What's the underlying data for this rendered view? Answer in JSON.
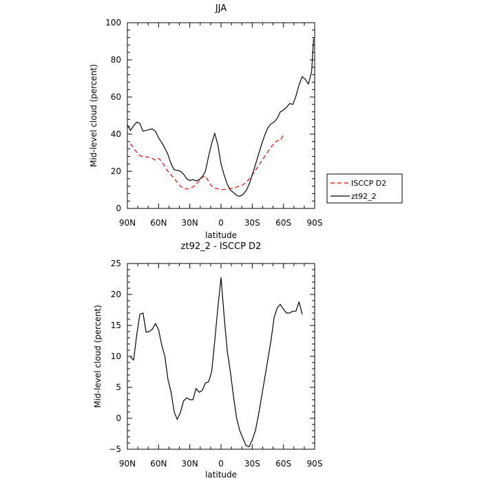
{
  "chart_data": [
    {
      "type": "line",
      "title": "JJA",
      "xlabel": "latitude",
      "ylabel": "Mid-level cloud (percent)",
      "xlim": [
        90,
        -90
      ],
      "ylim": [
        0,
        100
      ],
      "x_ticks": [
        90,
        60,
        30,
        0,
        -30,
        -60,
        -90
      ],
      "x_tick_labels": [
        "90N",
        "60N",
        "30N",
        "0",
        "30S",
        "60S",
        "90S"
      ],
      "y_ticks": [
        0,
        20,
        40,
        60,
        80,
        100
      ],
      "y_tick_labels": [
        "0",
        "20",
        "40",
        "60",
        "80",
        "100"
      ],
      "grid": false,
      "legend": {
        "position": "right",
        "entries": [
          "ISCCP D2",
          "zt92_2"
        ]
      },
      "series": [
        {
          "name": "ISCCP D2",
          "color": "#ff0000",
          "dash": "dashed",
          "points": [
            [
              87,
              34.8
            ],
            [
              84,
              32.5
            ],
            [
              81,
              30.2
            ],
            [
              78,
              28.5
            ],
            [
              75,
              27.7
            ],
            [
              72,
              27.8
            ],
            [
              69,
              27.4
            ],
            [
              66,
              26.8
            ],
            [
              63,
              26.0
            ],
            [
              60,
              26.9
            ],
            [
              57,
              25.5
            ],
            [
              54,
              22.5
            ],
            [
              51,
              20.0
            ],
            [
              48,
              18.0
            ],
            [
              45,
              16.0
            ],
            [
              42,
              14.0
            ],
            [
              39,
              12.0
            ],
            [
              36,
              10.8
            ],
            [
              33,
              10.4
            ],
            [
              30,
              10.6
            ],
            [
              27,
              11.5
            ],
            [
              24,
              13.0
            ],
            [
              21,
              15.0
            ],
            [
              18,
              16.8
            ],
            [
              15,
              17.5
            ],
            [
              12,
              14.5
            ],
            [
              9,
              12.0
            ],
            [
              6,
              11.0
            ],
            [
              3,
              10.5
            ],
            [
              0,
              10.2
            ],
            [
              -3,
              10.2
            ],
            [
              -6,
              10.5
            ],
            [
              -9,
              10.8
            ],
            [
              -12,
              11.1
            ],
            [
              -15,
              11.5
            ],
            [
              -18,
              12.0
            ],
            [
              -21,
              12.7
            ],
            [
              -24,
              14.0
            ],
            [
              -27,
              15.8
            ],
            [
              -30,
              18.0
            ],
            [
              -33,
              20.5
            ],
            [
              -36,
              23.0
            ],
            [
              -39,
              25.5
            ],
            [
              -42,
              28.0
            ],
            [
              -45,
              30.5
            ],
            [
              -48,
              33.0
            ],
            [
              -51,
              35.0
            ],
            [
              -54,
              36.5
            ],
            [
              -57,
              36.5
            ],
            [
              -60,
              39.8
            ]
          ]
        },
        {
          "name": "zt92_2",
          "color": "#000000",
          "dash": "solid",
          "points": [
            [
              90,
              45.0
            ],
            [
              87,
              42.0
            ],
            [
              84,
              44.5
            ],
            [
              81,
              46.5
            ],
            [
              78,
              45.7
            ],
            [
              75,
              41.6
            ],
            [
              72,
              42.0
            ],
            [
              69,
              42.5
            ],
            [
              66,
              42.8
            ],
            [
              63,
              41.5
            ],
            [
              60,
              38.0
            ],
            [
              57,
              35.5
            ],
            [
              54,
              32.5
            ],
            [
              51,
              29.0
            ],
            [
              48,
              24.0
            ],
            [
              45,
              20.8
            ],
            [
              42,
              20.5
            ],
            [
              39,
              20.0
            ],
            [
              36,
              18.5
            ],
            [
              33,
              16.0
            ],
            [
              30,
              15.0
            ],
            [
              27,
              15.5
            ],
            [
              24,
              14.8
            ],
            [
              21,
              15.5
            ],
            [
              18,
              17.0
            ],
            [
              15,
              20.0
            ],
            [
              12,
              28.0
            ],
            [
              9,
              35.0
            ],
            [
              6,
              40.5
            ],
            [
              3,
              34.0
            ],
            [
              0,
              24.0
            ],
            [
              -3,
              18.0
            ],
            [
              -6,
              13.0
            ],
            [
              -9,
              10.0
            ],
            [
              -12,
              8.5
            ],
            [
              -15,
              7.0
            ],
            [
              -18,
              6.5
            ],
            [
              -21,
              7.5
            ],
            [
              -24,
              9.5
            ],
            [
              -27,
              13.0
            ],
            [
              -30,
              18.0
            ],
            [
              -33,
              23.5
            ],
            [
              -36,
              29.0
            ],
            [
              -39,
              34.5
            ],
            [
              -42,
              39.5
            ],
            [
              -45,
              43.5
            ],
            [
              -48,
              45.5
            ],
            [
              -51,
              46.5
            ],
            [
              -54,
              48.5
            ],
            [
              -57,
              52.0
            ],
            [
              -60,
              53.0
            ],
            [
              -63,
              54.5
            ],
            [
              -66,
              56.5
            ],
            [
              -69,
              56.0
            ],
            [
              -72,
              60.5
            ],
            [
              -75,
              66.5
            ],
            [
              -78,
              71.0
            ],
            [
              -81,
              69.5
            ],
            [
              -84,
              67.0
            ],
            [
              -87,
              73.5
            ],
            [
              -89,
              91.5
            ]
          ]
        }
      ]
    },
    {
      "type": "line",
      "title": "zt92_2 - ISCCP D2",
      "xlabel": "latitude",
      "ylabel": "Mid-level cloud (percent)",
      "xlim": [
        90,
        -90
      ],
      "ylim": [
        -5,
        25
      ],
      "x_ticks": [
        90,
        60,
        30,
        0,
        -30,
        -60,
        -90
      ],
      "x_tick_labels": [
        "90N",
        "60N",
        "30N",
        "0",
        "30S",
        "60S",
        "90S"
      ],
      "y_ticks": [
        -5,
        0,
        5,
        10,
        15,
        20,
        25
      ],
      "y_tick_labels": [
        "−5",
        "0",
        "5",
        "10",
        "15",
        "20",
        "25"
      ],
      "grid": false,
      "series": [
        {
          "color": "#000000",
          "dash": "solid",
          "points": [
            [
              87,
              9.9
            ],
            [
              84,
              9.4
            ],
            [
              81,
              13.5
            ],
            [
              78,
              16.8
            ],
            [
              75,
              17.0
            ],
            [
              72,
              13.9
            ],
            [
              69,
              14.0
            ],
            [
              66,
              14.4
            ],
            [
              63,
              15.3
            ],
            [
              60,
              14.3
            ],
            [
              57,
              11.8
            ],
            [
              54,
              10.0
            ],
            [
              51,
              6.3
            ],
            [
              48,
              4.2
            ],
            [
              45,
              1.0
            ],
            [
              42,
              -0.2
            ],
            [
              39,
              1.0
            ],
            [
              36,
              2.8
            ],
            [
              33,
              3.3
            ],
            [
              30,
              3.0
            ],
            [
              27,
              3.0
            ],
            [
              24,
              4.8
            ],
            [
              21,
              4.2
            ],
            [
              18,
              4.5
            ],
            [
              15,
              5.7
            ],
            [
              12,
              5.9
            ],
            [
              9,
              7.5
            ],
            [
              6,
              12.5
            ],
            [
              3,
              18.0
            ],
            [
              0,
              22.7
            ],
            [
              -3,
              16.5
            ],
            [
              -6,
              10.8
            ],
            [
              -9,
              7.5
            ],
            [
              -12,
              3.5
            ],
            [
              -15,
              0.0
            ],
            [
              -18,
              -2.0
            ],
            [
              -21,
              -3.2
            ],
            [
              -24,
              -4.4
            ],
            [
              -27,
              -4.6
            ],
            [
              -30,
              -3.5
            ],
            [
              -33,
              -2.0
            ],
            [
              -36,
              0.5
            ],
            [
              -39,
              3.5
            ],
            [
              -42,
              6.5
            ],
            [
              -45,
              9.5
            ],
            [
              -48,
              12.5
            ],
            [
              -51,
              16.3
            ],
            [
              -54,
              17.8
            ],
            [
              -57,
              18.4
            ],
            [
              -60,
              17.6
            ],
            [
              -63,
              17.0
            ],
            [
              -66,
              17.0
            ],
            [
              -69,
              17.3
            ],
            [
              -72,
              17.3
            ],
            [
              -75,
              18.8
            ],
            [
              -78,
              16.8
            ]
          ]
        }
      ]
    }
  ]
}
